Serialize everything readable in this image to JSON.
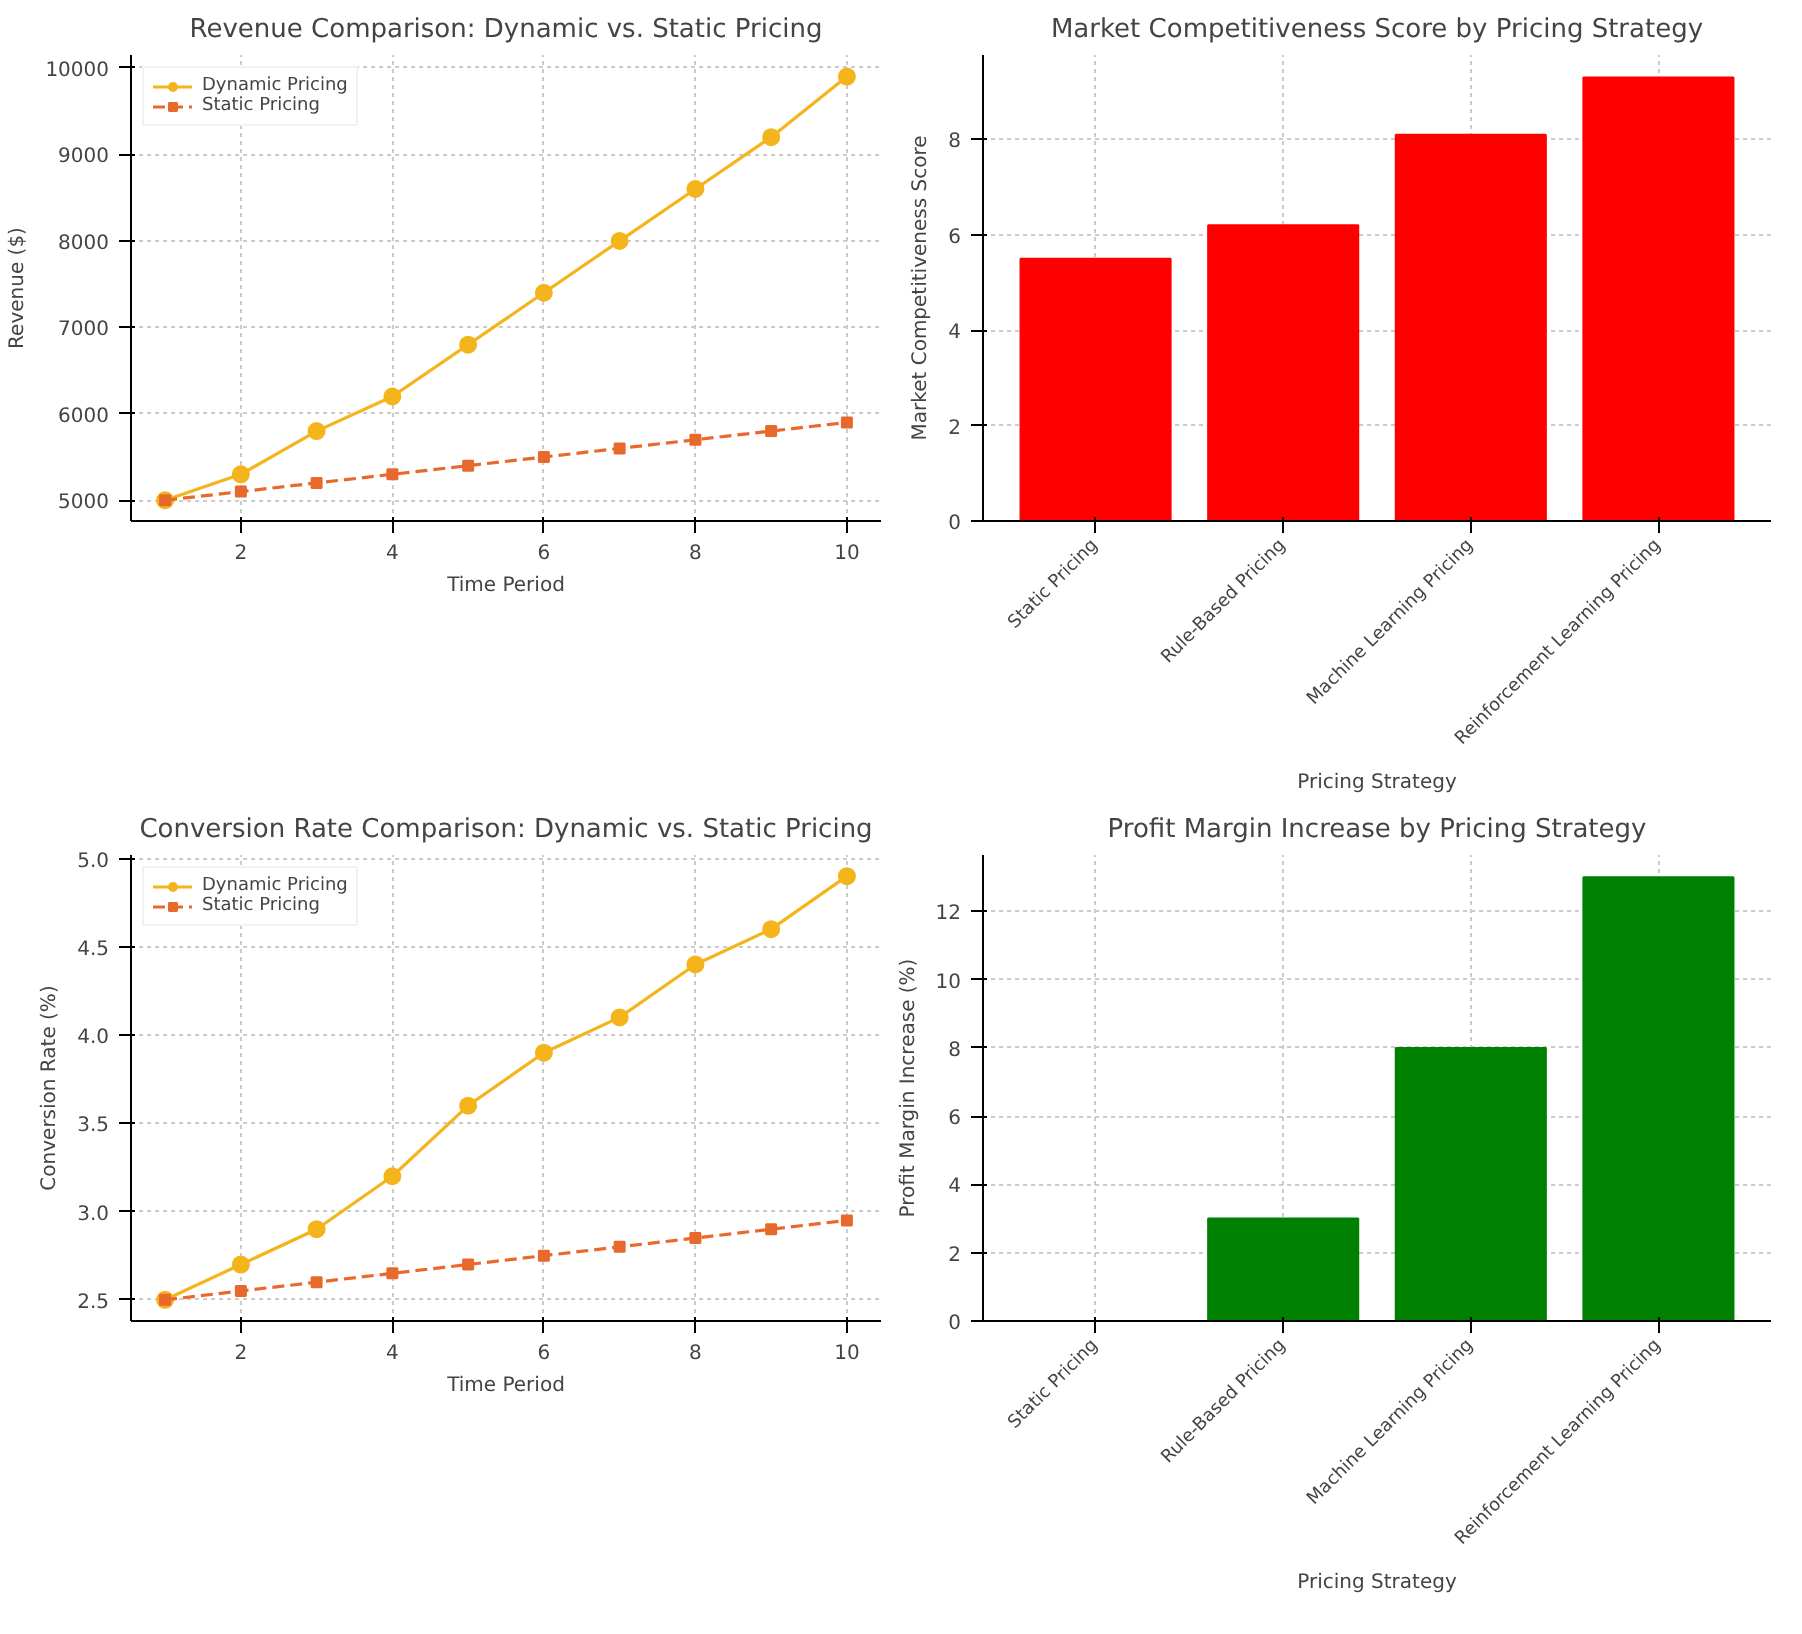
{
  "chart_data": [
    {
      "type": "line",
      "title": "Revenue Comparison: Dynamic vs. Static Pricing",
      "xlabel": "Time Period",
      "ylabel": "Revenue ($)",
      "x": [
        1,
        2,
        3,
        4,
        5,
        6,
        7,
        8,
        9,
        10
      ],
      "xlim": [
        0.55,
        10.45
      ],
      "xticks": [
        2,
        4,
        6,
        8,
        10
      ],
      "ylim": [
        4760,
        10150
      ],
      "yticks": [
        5000,
        6000,
        7000,
        8000,
        9000,
        10000
      ],
      "grid": true,
      "legend": "top left",
      "series": [
        {
          "name": "Dynamic Pricing",
          "color": "#f4b41b",
          "marker": "circle",
          "line_style": "solid",
          "values": [
            5000,
            5300,
            5800,
            6200,
            6800,
            7400,
            8000,
            8600,
            9200,
            9900
          ]
        },
        {
          "name": "Static Pricing",
          "color": "#e8692c",
          "marker": "square",
          "line_style": "dashed",
          "values": [
            5000,
            5100,
            5200,
            5300,
            5400,
            5500,
            5600,
            5700,
            5800,
            5900
          ]
        }
      ]
    },
    {
      "type": "bar",
      "title": "Market Competitiveness Score by Pricing Strategy",
      "xlabel": "Pricing Strategy",
      "ylabel": "Market Competitiveness Score",
      "categories": [
        "Static Pricing",
        "Rule-Based Pricing",
        "Machine Learning Pricing",
        "Reinforcement Learning Pricing"
      ],
      "values": [
        5.5,
        6.2,
        8.1,
        9.3
      ],
      "color": "#ff0000",
      "ylim": [
        0,
        9.77
      ],
      "yticks": [
        0,
        2,
        4,
        6,
        8
      ],
      "grid": true
    },
    {
      "type": "line",
      "title": "Conversion Rate Comparison: Dynamic vs. Static Pricing",
      "xlabel": "Time Period",
      "ylabel": "Conversion Rate (%)",
      "x": [
        1,
        2,
        3,
        4,
        5,
        6,
        7,
        8,
        9,
        10
      ],
      "xlim": [
        0.55,
        10.45
      ],
      "xticks": [
        2,
        4,
        6,
        8,
        10
      ],
      "ylim": [
        2.38,
        5.02
      ],
      "yticks": [
        {
          "value": 2.5,
          "label": "2.5"
        },
        {
          "value": 3.0,
          "label": "3.0"
        },
        {
          "value": 3.5,
          "label": "3.5"
        },
        {
          "value": 4.0,
          "label": "4.0"
        },
        {
          "value": 4.5,
          "label": "4.5"
        },
        {
          "value": 5.0,
          "label": "5.0"
        }
      ],
      "grid": true,
      "legend": "top left",
      "series": [
        {
          "name": "Dynamic Pricing",
          "color": "#f4b41b",
          "marker": "circle",
          "line_style": "solid",
          "values": [
            2.5,
            2.7,
            2.9,
            3.2,
            3.6,
            3.9,
            4.1,
            4.4,
            4.6,
            4.9
          ]
        },
        {
          "name": "Static Pricing",
          "color": "#e8692c",
          "marker": "square",
          "line_style": "dashed",
          "values": [
            2.5,
            2.55,
            2.6,
            2.65,
            2.7,
            2.75,
            2.8,
            2.85,
            2.9,
            2.95
          ]
        }
      ]
    },
    {
      "type": "bar",
      "title": "Profit Margin Increase by Pricing Strategy",
      "xlabel": "Pricing Strategy",
      "ylabel": "Profit Margin Increase (%)",
      "categories": [
        "Static Pricing",
        "Rule-Based Pricing",
        "Machine Learning Pricing",
        "Reinforcement Learning Pricing"
      ],
      "values": [
        0,
        3,
        8,
        13
      ],
      "color": "#008000",
      "ylim": [
        0,
        13.65
      ],
      "yticks": [
        0,
        2,
        4,
        6,
        8,
        10,
        12
      ],
      "grid": true
    }
  ]
}
